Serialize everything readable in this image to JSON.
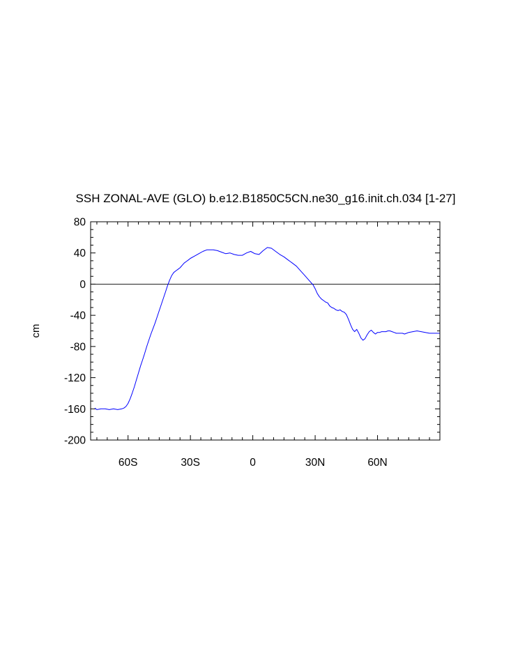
{
  "chart_data": {
    "type": "line",
    "title": "SSH ZONAL-AVE (GLO) b.e12.B1850C5CN.ne30_g16.init.ch.034 [1-27]",
    "xlabel": "",
    "ylabel": "cm",
    "xlim": [
      -78,
      90
    ],
    "ylim": [
      -200,
      80
    ],
    "x_ticks": [
      {
        "value": -60,
        "label": "60S"
      },
      {
        "value": -30,
        "label": "30S"
      },
      {
        "value": 0,
        "label": "0"
      },
      {
        "value": 30,
        "label": "30N"
      },
      {
        "value": 60,
        "label": "60N"
      }
    ],
    "y_ticks": [
      {
        "value": 80,
        "label": "80"
      },
      {
        "value": 40,
        "label": "40"
      },
      {
        "value": 0,
        "label": "0"
      },
      {
        "value": -40,
        "label": "-40"
      },
      {
        "value": -80,
        "label": "-80"
      },
      {
        "value": -120,
        "label": "-120"
      },
      {
        "value": -160,
        "label": "-160"
      },
      {
        "value": -200,
        "label": "-200"
      }
    ],
    "zero_line": true,
    "series": [
      {
        "color": "#0000ff",
        "x": [
          -76,
          -75,
          -73,
          -71,
          -69,
          -67,
          -65,
          -63,
          -62,
          -61,
          -60,
          -59,
          -58,
          -57,
          -56,
          -55,
          -54,
          -53,
          -52,
          -51,
          -50,
          -49,
          -48,
          -47,
          -46,
          -45,
          -44,
          -43,
          -42,
          -41,
          -40,
          -39,
          -38,
          -37,
          -36,
          -35,
          -34,
          -33,
          -32,
          -31,
          -30,
          -28,
          -26,
          -24,
          -22,
          -20,
          -19,
          -17,
          -15,
          -13,
          -11,
          -9,
          -7,
          -5,
          -3,
          -1,
          1,
          3,
          5,
          7,
          9,
          11,
          13,
          15,
          17,
          18,
          19,
          21,
          23,
          25,
          27,
          29,
          30,
          31,
          32,
          33,
          34,
          35,
          36,
          37,
          38,
          39,
          40,
          41,
          42,
          43,
          44,
          45,
          46,
          47,
          48,
          49,
          50,
          51,
          52,
          53,
          54,
          55,
          56,
          57,
          58,
          59,
          60,
          61,
          62,
          63,
          64,
          65,
          66,
          67,
          68,
          69,
          70,
          71,
          72,
          73,
          74,
          75,
          77,
          79,
          81,
          83,
          85,
          88,
          90
        ],
        "y": [
          -159,
          -161,
          -160,
          -160,
          -161,
          -160,
          -161,
          -160,
          -159,
          -157,
          -153,
          -147,
          -140,
          -132,
          -123,
          -114,
          -105,
          -97,
          -89,
          -80,
          -72,
          -64,
          -57,
          -50,
          -42,
          -34,
          -26,
          -18,
          -10,
          -2,
          5,
          11,
          15,
          17,
          19,
          21,
          24,
          27,
          29,
          31,
          33,
          36,
          39,
          42,
          44,
          44,
          44,
          43,
          41,
          39,
          40,
          38,
          37,
          37,
          40,
          42,
          39,
          38,
          43,
          47,
          46,
          42,
          38,
          35,
          31,
          29,
          27,
          23,
          17,
          11,
          5,
          -1,
          -6,
          -12,
          -16,
          -19,
          -21,
          -23,
          -24,
          -28,
          -30,
          -31,
          -33,
          -34,
          -33,
          -35,
          -36,
          -39,
          -45,
          -52,
          -58,
          -61,
          -58,
          -63,
          -69,
          -72,
          -70,
          -65,
          -61,
          -59,
          -62,
          -64,
          -62,
          -62,
          -61,
          -61,
          -61,
          -60,
          -60,
          -61,
          -62,
          -63,
          -63,
          -63,
          -63,
          -64,
          -63,
          -62,
          -61,
          -60,
          -61,
          -62,
          -63,
          -63,
          -63
        ]
      }
    ]
  }
}
